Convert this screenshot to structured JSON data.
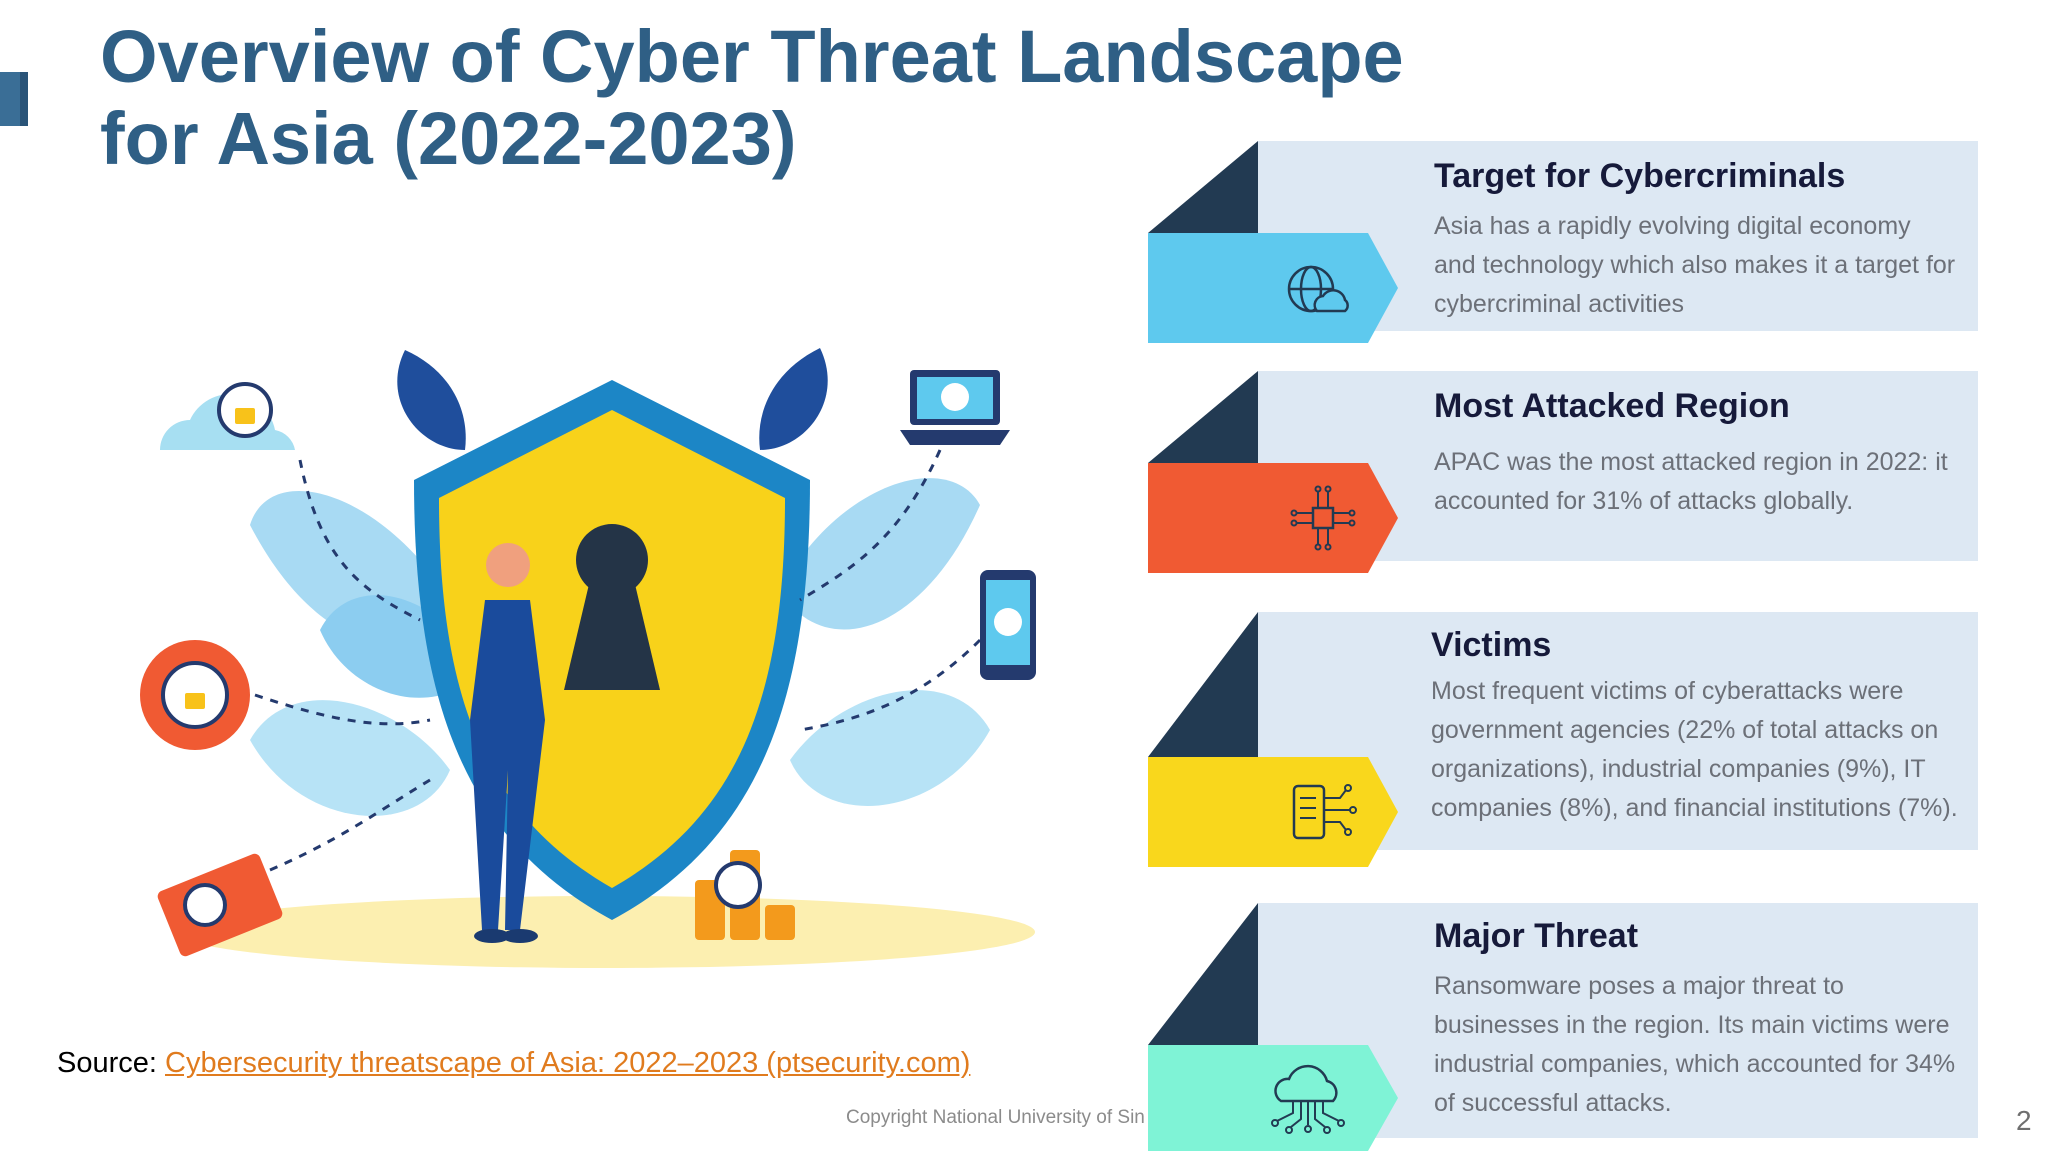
{
  "title": {
    "line1": "Overview of Cyber Threat Landscape",
    "line2": "for Asia (2022-2023)"
  },
  "cards": [
    {
      "heading": "Target for Cybercriminals",
      "body": "Asia has a rapidly evolving digital economy and technology which also makes it a target for cybercriminal activities",
      "icon": "globe-cloud-icon",
      "tab_color": "#5ec9ee"
    },
    {
      "heading": "Most Attacked Region",
      "body": "APAC was the most attacked region in 2022: it accounted for 31% of attacks globally.",
      "icon": "circuit-chip-icon",
      "tab_color": "#f05a33"
    },
    {
      "heading": "Victims",
      "body": "Most frequent victims of cyberattacks were government agencies (22% of total attacks on organizations), industrial companies (9%), IT companies (8%), and financial institutions (7%).",
      "icon": "digital-document-icon",
      "tab_color": "#f9d71c"
    },
    {
      "heading": "Major Threat",
      "body": "Ransomware poses a major threat to businesses in the region. Its main victims were industrial companies, which accounted for 34% of successful attacks.",
      "icon": "cloud-network-icon",
      "tab_color": "#7ff3d6"
    }
  ],
  "source": {
    "label": "Source: ",
    "link_text": "Cybersecurity threatscape of Asia: 2022–2023 (ptsecurity.com)"
  },
  "footer": {
    "copyright": "Copyright National University of Sin",
    "page_number": "2"
  },
  "colors": {
    "title": "#2f5f85",
    "panel": "#dde8f3",
    "dark": "#223a52",
    "link": "#e07b1e"
  }
}
